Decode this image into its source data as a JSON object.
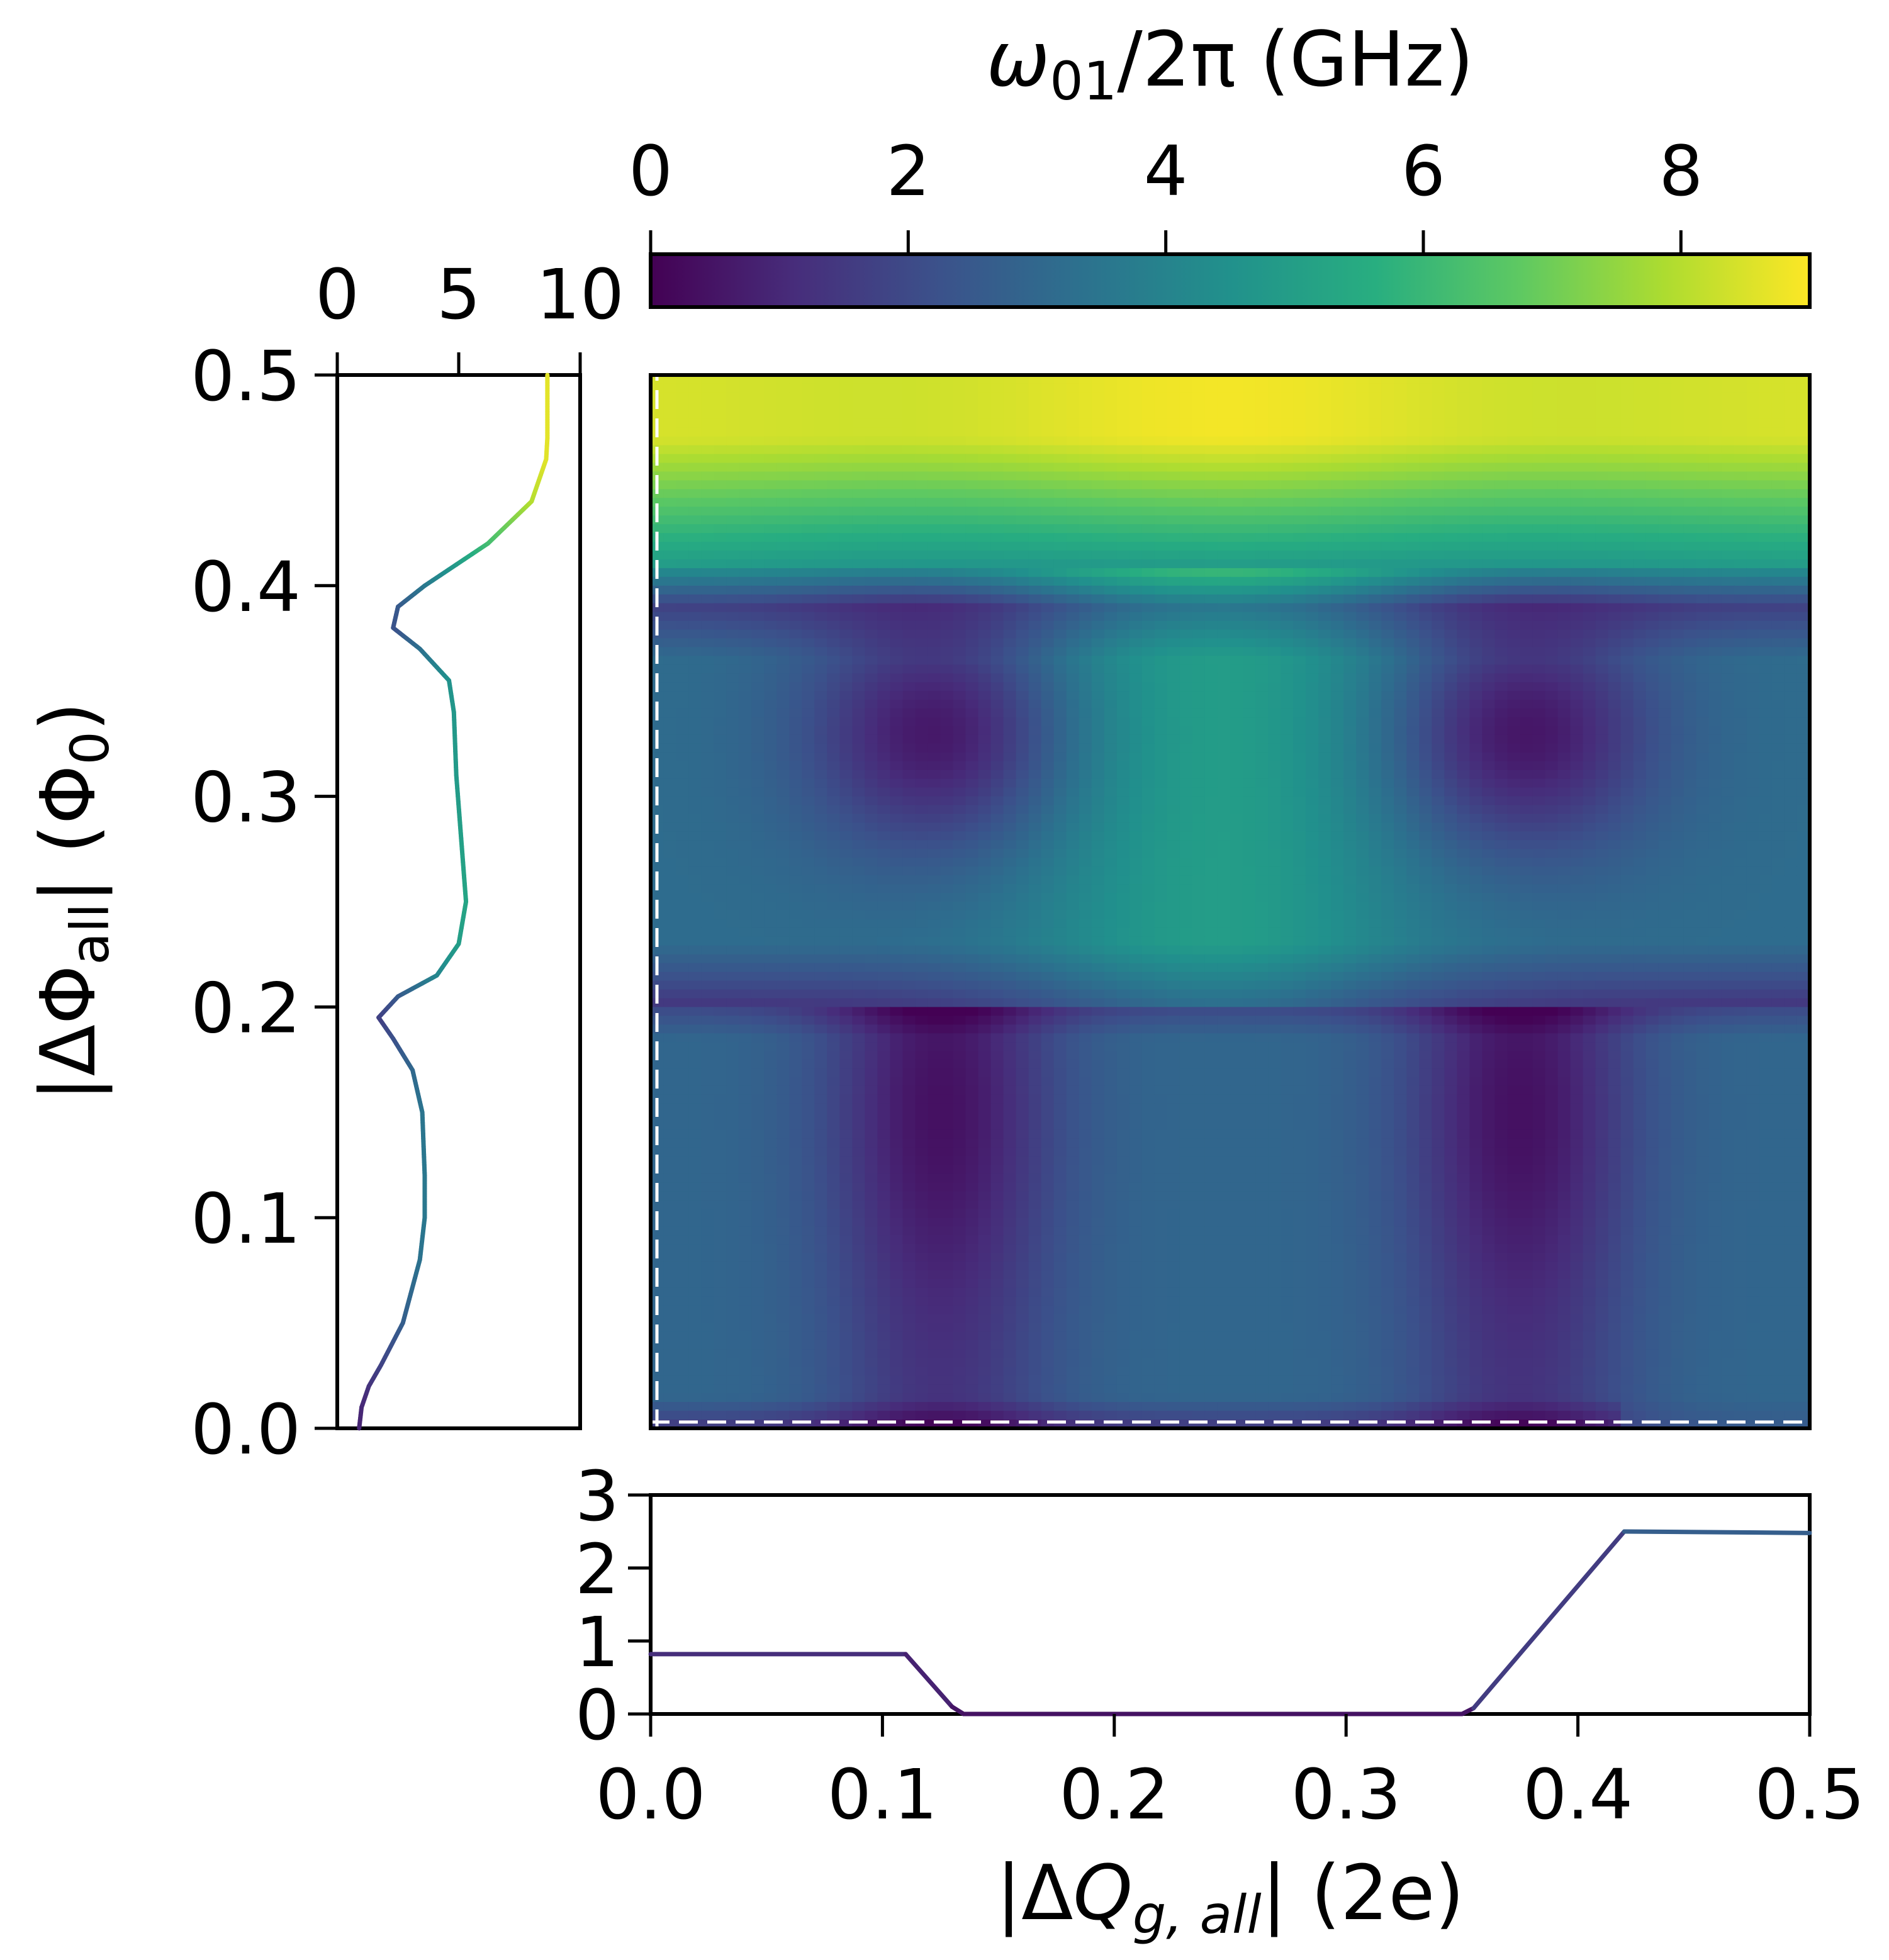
{
  "chart_data": [
    {
      "panel": "main-heatmap",
      "type": "heatmap",
      "xlim": [
        0.0,
        0.5
      ],
      "ylim": [
        0.0,
        0.5
      ],
      "xticks": [
        "0.0",
        "0.1",
        "0.2",
        "0.3",
        "0.4",
        "0.5"
      ],
      "xlabel_prefix": "|ΔQ",
      "xlabel_sub": "g, all",
      "xlabel_suffix": "| (2e)",
      "description_of_values": "color encodes ω01/2π in GHz",
      "features": {
        "minima_q": [
          0.125,
          0.375
        ],
        "dips_phi": [
          0.2,
          0.39
        ],
        "top_band_phi_from": 0.42,
        "top_band_value_ghz": 8.5,
        "plateau_phi_range": [
          0.2,
          0.39
        ]
      }
    },
    {
      "panel": "colorbar",
      "type": "colorbar",
      "title_symbol": "ω",
      "title_sub": "01",
      "title_suffix": "/2π (GHz)",
      "range": [
        0,
        9
      ],
      "ticks": [
        "0",
        "2",
        "4",
        "6",
        "8"
      ],
      "colormap": "viridis"
    },
    {
      "panel": "left-profile",
      "type": "line",
      "x_range": [
        0,
        10
      ],
      "xticks": [
        "0",
        "5",
        "10"
      ],
      "ylim": [
        0.0,
        0.5
      ],
      "yticks": [
        "0.0",
        "0.1",
        "0.2",
        "0.3",
        "0.4",
        "0.5"
      ],
      "ylabel_prefix": "|ΔΦ",
      "ylabel_sub": "all",
      "ylabel_middle": "| (Φ",
      "ylabel_sub2": "0",
      "ylabel_suffix": ")",
      "phi": [
        0.0,
        0.01,
        0.02,
        0.03,
        0.05,
        0.08,
        0.1,
        0.12,
        0.15,
        0.17,
        0.185,
        0.195,
        0.205,
        0.215,
        0.23,
        0.25,
        0.28,
        0.31,
        0.34,
        0.355,
        0.37,
        0.38,
        0.39,
        0.4,
        0.42,
        0.44,
        0.46,
        0.47,
        0.5
      ],
      "value_ghz": [
        0.9,
        1.0,
        1.3,
        1.8,
        2.7,
        3.4,
        3.6,
        3.6,
        3.5,
        3.1,
        2.3,
        1.7,
        2.5,
        4.1,
        5.0,
        5.3,
        5.1,
        4.9,
        4.8,
        4.6,
        3.4,
        2.3,
        2.5,
        3.6,
        6.2,
        8.0,
        8.6,
        8.65,
        8.65
      ]
    },
    {
      "panel": "bottom-profile",
      "type": "line",
      "xlim": [
        0.0,
        0.5
      ],
      "ylim": [
        0,
        3
      ],
      "yticks": [
        "0",
        "1",
        "2",
        "3"
      ],
      "q": [
        0.0,
        0.11,
        0.13,
        0.135,
        0.35,
        0.355,
        0.42,
        0.5
      ],
      "value_ghz": [
        0.82,
        0.82,
        0.1,
        0.0,
        0.0,
        0.08,
        2.5,
        2.48
      ]
    }
  ]
}
